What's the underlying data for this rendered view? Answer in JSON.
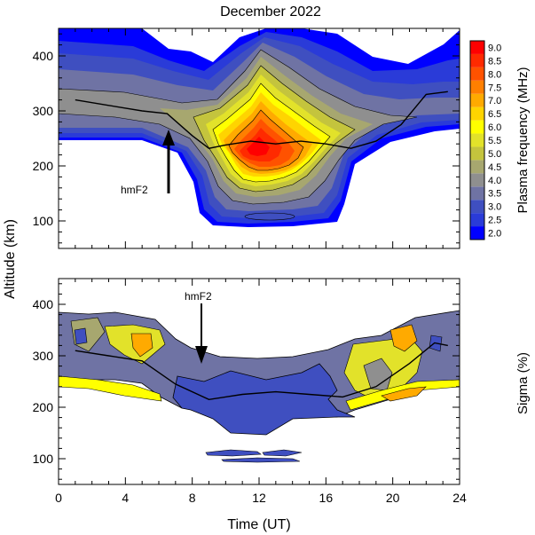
{
  "chart_data": [
    {
      "type": "heatmap",
      "title": "December  2022",
      "xlabel": "",
      "ylabel": "Altitude (km)",
      "xlim": [
        0,
        24
      ],
      "ylim": [
        50,
        450
      ],
      "yticks": [
        100,
        200,
        300,
        400
      ],
      "colorbar": {
        "label": "Plasma frequency (MHz)",
        "levels": [
          "2.0",
          "2.5",
          "3.0",
          "3.5",
          "4.0",
          "4.5",
          "5.0",
          "5.5",
          "6.0",
          "6.5",
          "7.0",
          "7.5",
          "8.0",
          "8.5",
          "9.0"
        ],
        "colors": [
          "#0000ff",
          "#2a3bd8",
          "#3f4fc0",
          "#6f73a4",
          "#8f8f8f",
          "#a7a76f",
          "#c4c43d",
          "#e2e22a",
          "#ffff00",
          "#ffd400",
          "#ffaa00",
          "#ff7f00",
          "#ff5200",
          "#ff2a00",
          "#ff0000"
        ]
      },
      "annotation": "hmF2",
      "hmF2": {
        "x": [
          1,
          3,
          5,
          6.5,
          8,
          9,
          10,
          11.5,
          13,
          14.5,
          16,
          17.5,
          19,
          20.5,
          22,
          23.3
        ],
        "y": [
          320,
          310,
          300,
          295,
          255,
          232,
          238,
          245,
          240,
          245,
          240,
          232,
          245,
          275,
          330,
          335
        ]
      }
    },
    {
      "type": "heatmap",
      "xlabel": "Time (UT)",
      "ylabel": "Altitude (km)",
      "xlim": [
        0,
        24
      ],
      "ylim": [
        50,
        450
      ],
      "xticks": [
        0,
        4,
        8,
        12,
        16,
        20,
        24
      ],
      "yticks": [
        100,
        200,
        300,
        400
      ],
      "colorbar": {
        "label": "Sigma (%)"
      },
      "annotation": "hmF2",
      "hmF2": {
        "x": [
          1,
          3,
          5,
          7,
          9,
          11,
          13,
          15,
          17,
          19,
          21,
          22.5,
          23.3
        ],
        "y": [
          310,
          300,
          290,
          245,
          215,
          225,
          230,
          225,
          220,
          240,
          285,
          325,
          320
        ]
      }
    }
  ]
}
